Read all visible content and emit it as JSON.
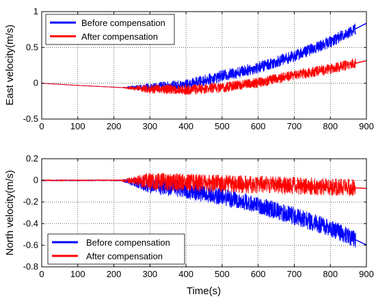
{
  "chart_data": [
    {
      "type": "line",
      "title": "",
      "xlabel": "",
      "ylabel": "East velocity(m/s)",
      "xlim": [
        0,
        900
      ],
      "ylim": [
        -0.5,
        1
      ],
      "xticks": [
        0,
        100,
        200,
        300,
        400,
        500,
        600,
        700,
        800,
        900
      ],
      "yticks": [
        -0.5,
        0,
        0.5,
        1
      ],
      "ytick_labels": [
        "-0.5",
        "0",
        "0.5",
        "1"
      ],
      "grid": true,
      "legend": "top-left",
      "noise_start": 220,
      "series": [
        {
          "name": "Before compensation",
          "color": "#0000ff",
          "x": [
            0,
            100,
            220,
            300,
            400,
            500,
            600,
            700,
            800,
            870
          ],
          "y": [
            0,
            -0.03,
            -0.06,
            -0.06,
            -0.02,
            0.1,
            0.22,
            0.38,
            0.58,
            0.76
          ],
          "noise_amplitude": [
            0,
            0,
            0,
            0.06,
            0.07,
            0.08,
            0.08,
            0.08,
            0.08,
            0.08
          ]
        },
        {
          "name": "After compensation",
          "color": "#ff0000",
          "x": [
            0,
            100,
            220,
            300,
            400,
            500,
            600,
            700,
            800,
            870
          ],
          "y": [
            0,
            -0.03,
            -0.06,
            -0.08,
            -0.09,
            -0.06,
            0.01,
            0.11,
            0.2,
            0.28
          ],
          "noise_amplitude": [
            0,
            0,
            0,
            0.06,
            0.07,
            0.07,
            0.07,
            0.07,
            0.07,
            0.07
          ]
        }
      ]
    },
    {
      "type": "line",
      "title": "",
      "xlabel": "Time(s)",
      "ylabel": "North velocity(m/s)",
      "xlim": [
        0,
        900
      ],
      "ylim": [
        -0.8,
        0.2
      ],
      "xticks": [
        0,
        100,
        200,
        300,
        400,
        500,
        600,
        700,
        800,
        900
      ],
      "yticks": [
        -0.8,
        -0.6,
        -0.4,
        -0.2,
        0,
        0.2
      ],
      "ytick_labels": [
        "-0.8",
        "-0.6",
        "-0.4",
        "-0.2",
        "0",
        "0.2"
      ],
      "grid": true,
      "legend": "bottom-left",
      "noise_start": 220,
      "series": [
        {
          "name": "Before compensation",
          "color": "#0000ff",
          "x": [
            0,
            220,
            300,
            400,
            500,
            600,
            700,
            800,
            870
          ],
          "y": [
            0,
            0,
            -0.04,
            -0.09,
            -0.15,
            -0.23,
            -0.33,
            -0.44,
            -0.55
          ],
          "noise_amplitude": [
            0.005,
            0.005,
            0.08,
            0.08,
            0.08,
            0.08,
            0.08,
            0.08,
            0.08
          ]
        },
        {
          "name": "After compensation",
          "color": "#ff0000",
          "x": [
            0,
            220,
            300,
            400,
            500,
            600,
            700,
            800,
            870
          ],
          "y": [
            0,
            0,
            -0.01,
            -0.02,
            -0.03,
            -0.04,
            -0.05,
            -0.06,
            -0.07
          ],
          "noise_amplitude": [
            0.005,
            0.005,
            0.08,
            0.08,
            0.08,
            0.08,
            0.08,
            0.08,
            0.08
          ]
        }
      ]
    }
  ]
}
